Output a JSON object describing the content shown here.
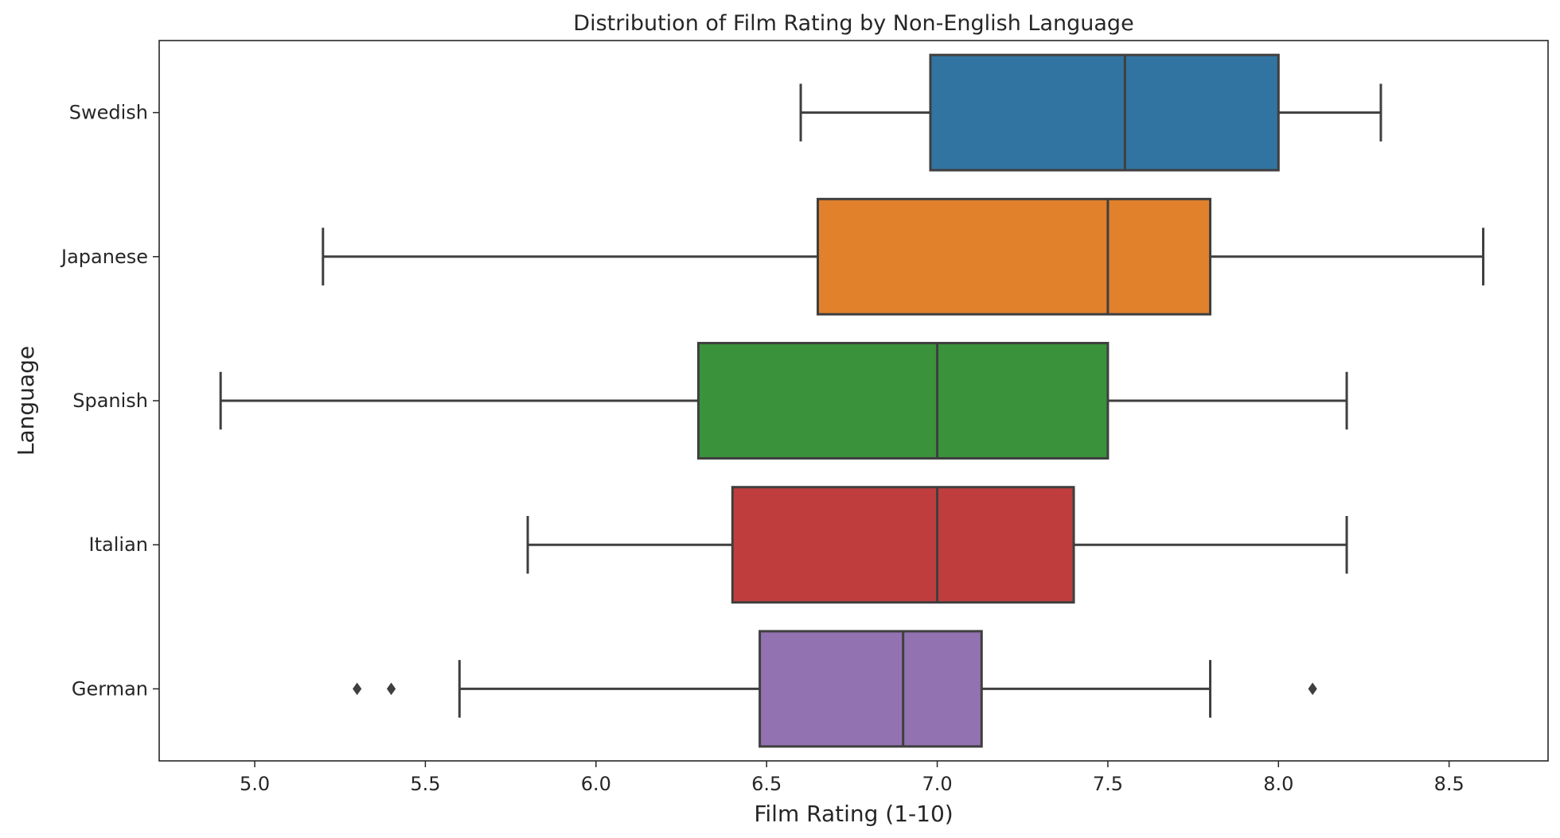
{
  "chart_data": {
    "type": "boxplot",
    "orientation": "horizontal",
    "title": "Distribution of Film Rating by Non-English Language",
    "xlabel": "Film Rating (1-10)",
    "ylabel": "Language",
    "xlim": [
      4.72,
      8.79
    ],
    "xticks": [
      5.0,
      5.5,
      6.0,
      6.5,
      7.0,
      7.5,
      8.0,
      8.5
    ],
    "xtick_labels": [
      "5.0",
      "5.5",
      "6.0",
      "6.5",
      "7.0",
      "7.5",
      "8.0",
      "8.5"
    ],
    "grid": false,
    "categories": [
      "Swedish",
      "Japanese",
      "Spanish",
      "Italian",
      "German"
    ],
    "boxes": [
      {
        "label": "Swedish",
        "whisker_low": 6.6,
        "q1": 6.98,
        "median": 7.55,
        "q3": 8.0,
        "whisker_high": 8.3,
        "outliers": [],
        "color": "#3274a1"
      },
      {
        "label": "Japanese",
        "whisker_low": 5.2,
        "q1": 6.65,
        "median": 7.5,
        "q3": 7.8,
        "whisker_high": 8.6,
        "outliers": [],
        "color": "#e1812c"
      },
      {
        "label": "Spanish",
        "whisker_low": 4.9,
        "q1": 6.3,
        "median": 7.0,
        "q3": 7.5,
        "whisker_high": 8.2,
        "outliers": [],
        "color": "#3a923a"
      },
      {
        "label": "Italian",
        "whisker_low": 5.8,
        "q1": 6.4,
        "median": 7.0,
        "q3": 7.4,
        "whisker_high": 8.2,
        "outliers": [],
        "color": "#c03d3e"
      },
      {
        "label": "German",
        "whisker_low": 5.6,
        "q1": 6.48,
        "median": 6.9,
        "q3": 7.13,
        "whisker_high": 7.8,
        "outliers": [
          5.3,
          5.4,
          8.1
        ],
        "color": "#9372b2"
      }
    ],
    "line_color": "#3f3f3f"
  }
}
